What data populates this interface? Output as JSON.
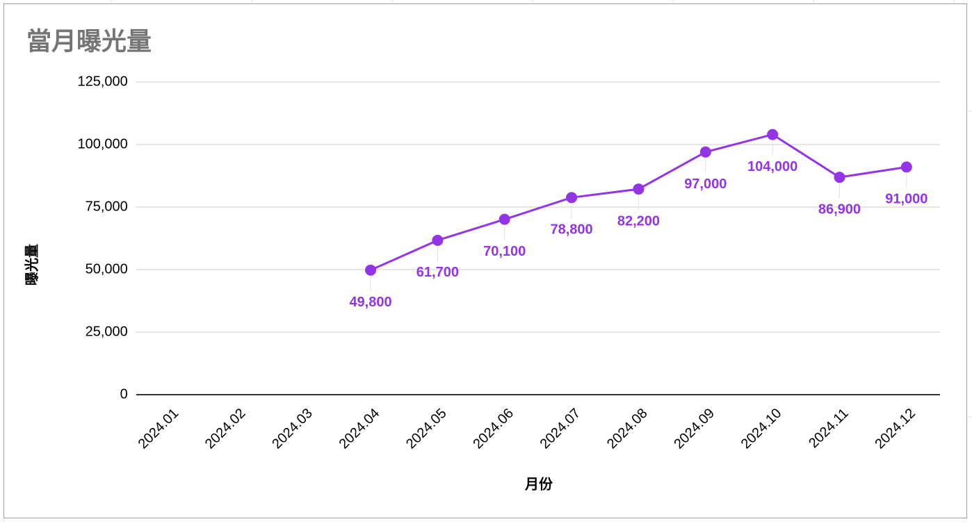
{
  "chart_data": {
    "type": "line",
    "title": "當月曝光量",
    "x_label": "月份",
    "y_label": "曝光量",
    "categories": [
      "2024.01",
      "2024.02",
      "2024.03",
      "2024.04",
      "2024.05",
      "2024.06",
      "2024.07",
      "2024.08",
      "2024.09",
      "2024.10",
      "2024.11",
      "2024.12"
    ],
    "values": [
      null,
      null,
      null,
      49800,
      61700,
      70100,
      78800,
      82200,
      97000,
      104000,
      86900,
      91000
    ],
    "value_labels": [
      null,
      null,
      null,
      "49,800",
      "61,700",
      "70,100",
      "78,800",
      "82,200",
      "97,000",
      "104,000",
      "86,900",
      "91,000"
    ],
    "color": "#9334e6",
    "ylim": [
      0,
      125000
    ],
    "yticks": [
      0,
      {
        "value": 25000,
        "label": "25,000"
      },
      {
        "value": 50000,
        "label": "50,000"
      },
      {
        "value": 75000,
        "label": "75,000"
      },
      {
        "value": 100000,
        "label": "100,000"
      },
      {
        "value": 125000,
        "label": "125,000"
      }
    ],
    "grid": true
  }
}
